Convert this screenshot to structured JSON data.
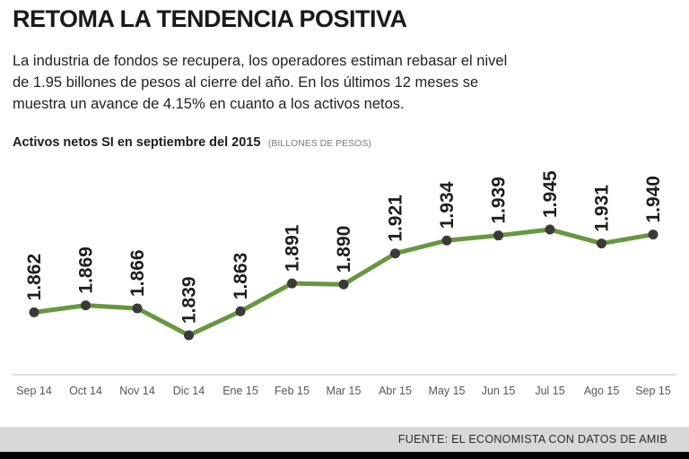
{
  "header": {
    "title": "RETOMA LA TENDENCIA POSITIVA",
    "intro": "La industria de fondos se recupera, los operadores estiman rebasar el nivel de 1.95 billones de pesos al cierre del año. En los últimos 12 meses se muestra un avance de 4.15% en cuanto a los activos netos."
  },
  "chart_heading": {
    "label": "Activos netos SI en septiembre del 2015",
    "unit": "(BILLONES DE PESOS)"
  },
  "chart_data": {
    "type": "line",
    "title": "Activos netos SI en septiembre del 2015",
    "ylabel": "BILLONES DE PESOS",
    "categories": [
      "Sep 14",
      "Oct 14",
      "Nov 14",
      "Dic 14",
      "Ene 15",
      "Feb 15",
      "Mar 15",
      "Abr 15",
      "May 15",
      "Jun 15",
      "Jul 15",
      "Ago 15",
      "Sep 15"
    ],
    "values": [
      1.862,
      1.869,
      1.866,
      1.839,
      1.863,
      1.891,
      1.89,
      1.921,
      1.934,
      1.939,
      1.945,
      1.931,
      1.94
    ],
    "value_labels": [
      "1.862",
      "1.869",
      "1.866",
      "1.839",
      "1.863",
      "1.891",
      "1.890",
      "1.921",
      "1.934",
      "1.939",
      "1.945",
      "1.931",
      "1.940"
    ],
    "ylim": [
      1.82,
      1.96
    ],
    "grid": false,
    "legend": "none",
    "label_rotation": -90,
    "line_color": "#67973f",
    "marker_color": "#3a3a38",
    "axis_color": "#c4c4c4",
    "label_color": "#1d1d1b",
    "tick_color": "#575756"
  },
  "footer": {
    "source": "FUENTE: EL ECONOMISTA CON DATOS DE AMIB"
  }
}
